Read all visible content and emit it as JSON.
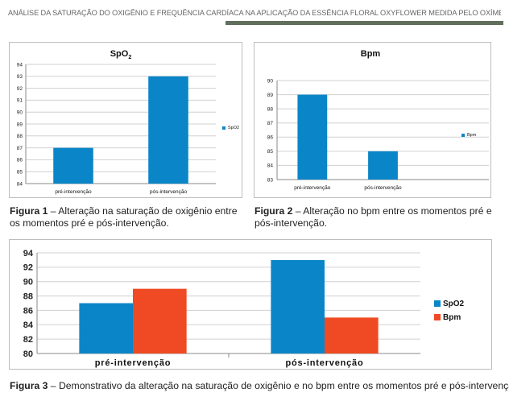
{
  "header": {
    "running_title": "ANÁLISE DA SATURAÇÃO DO OXIGÊNIO E FREQUÊNCIA CARDÍACA NA APLICAÇÃO DA ESSÊNCIA FLORAL OXYFLOWER MEDIDA PELO OXÍMETRO DE PULSO DE DEDO EM PACIENTE COM CÂNCER",
    "rule_color": "#5f6f5c"
  },
  "colors": {
    "blue": "#0a86c8",
    "orange": "#ef4a23",
    "grid": "#d0d0d0"
  },
  "captions": [
    {
      "label": "Figura 1",
      "text": " – Alteração na saturação de oxigênio entre os momentos pré e pós-intervenção."
    },
    {
      "label": "Figura 2",
      "text": " – Alteração no bpm entre os momentos pré e pós-intervenção."
    },
    {
      "label": "Figura 3",
      "text": " – Demonstrativo da alteração na saturação de oxigênio e no bpm entre os momentos pré e pós-intervenção."
    }
  ],
  "chart_data": [
    {
      "type": "bar",
      "title": "SpO2",
      "categories": [
        "pré-intervenção",
        "pós-intervenção"
      ],
      "series": [
        {
          "name": "SpO2",
          "values": [
            87,
            93
          ],
          "color": "#0a86c8"
        }
      ],
      "ylim": [
        84,
        94
      ],
      "yticks": [
        84,
        85,
        86,
        87,
        88,
        89,
        90,
        91,
        92,
        93,
        94
      ],
      "grid": true,
      "legend": "right"
    },
    {
      "type": "bar",
      "title": "Bpm",
      "categories": [
        "pré-intervenção",
        "pós-intervenção",
        ""
      ],
      "series": [
        {
          "name": "Bpm",
          "values": [
            89,
            85,
            null
          ],
          "color": "#0a86c8"
        }
      ],
      "ylim": [
        83,
        90
      ],
      "yticks": [
        83,
        84,
        85,
        86,
        87,
        88,
        89,
        90
      ],
      "grid": true,
      "legend": "right"
    },
    {
      "type": "bar",
      "title": "",
      "categories": [
        "pré-intervenção",
        "pós-intervenção"
      ],
      "series": [
        {
          "name": "SpO2",
          "values": [
            87,
            93
          ],
          "color": "#0a86c8"
        },
        {
          "name": "Bpm",
          "values": [
            89,
            85
          ],
          "color": "#ef4a23"
        }
      ],
      "ylim": [
        80,
        94
      ],
      "yticks": [
        80,
        82,
        84,
        86,
        88,
        90,
        92,
        94
      ],
      "grid": true,
      "legend": "right"
    }
  ]
}
